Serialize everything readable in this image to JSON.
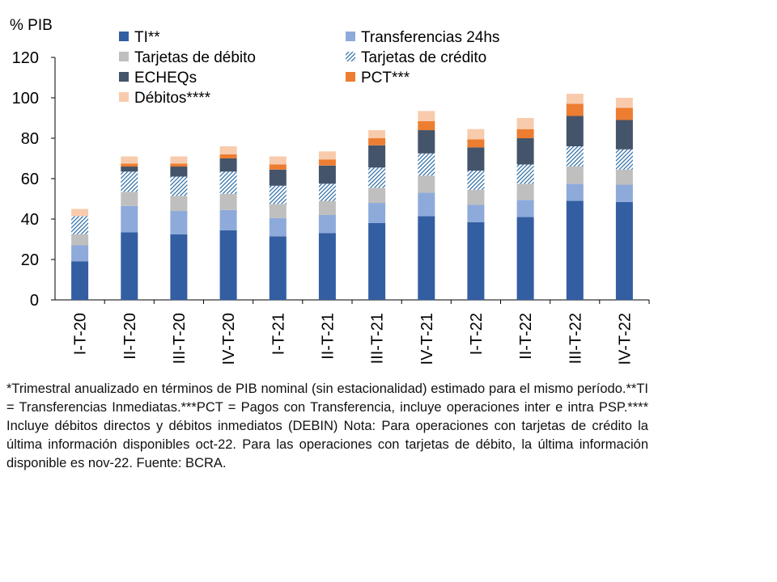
{
  "chart_data": {
    "type": "bar",
    "stacked": true,
    "ylabel": "% PIB",
    "ylim": [
      0,
      120
    ],
    "yticks": [
      0,
      20,
      40,
      60,
      80,
      100,
      120
    ],
    "grid": false,
    "legend_position": "top",
    "categories": [
      "I-T-20",
      "II-T-20",
      "III-T-20",
      "IV-T-20",
      "I-T-21",
      "II-T-21",
      "III-T-21",
      "IV-T-21",
      "I-T-22",
      "II-T-22",
      "III-T-22",
      "IV-T-22"
    ],
    "series": [
      {
        "name": "TI**",
        "color": "#345ea2",
        "pattern": "solid",
        "values": [
          19,
          33.5,
          32.5,
          34.5,
          31.5,
          33,
          38,
          41.5,
          38.5,
          41,
          49,
          48.5
        ]
      },
      {
        "name": "Transferencias 24hs",
        "color": "#8eaadb",
        "pattern": "solid",
        "values": [
          8,
          13,
          11.5,
          10,
          9,
          9,
          10,
          11.5,
          8.5,
          8.5,
          8.5,
          8.5
        ]
      },
      {
        "name": "Tarjetas de débito",
        "color": "#bfbfbf",
        "pattern": "solid",
        "values": [
          5.5,
          7,
          7.5,
          8,
          7,
          7,
          7.5,
          8.5,
          7.5,
          8,
          8.5,
          7.5
        ]
      },
      {
        "name": "Tarjetas de crédito",
        "color": "#2e6da4",
        "pattern": "hatch",
        "values": [
          9,
          10,
          9.5,
          11,
          9,
          8.5,
          10,
          11,
          9.5,
          9.5,
          10,
          10
        ]
      },
      {
        "name": "ECHEQs",
        "color": "#44546a",
        "pattern": "solid",
        "values": [
          0,
          2.5,
          5,
          6.5,
          8,
          9,
          11,
          11.5,
          11.5,
          13,
          15,
          14.5
        ]
      },
      {
        "name": "PCT***",
        "color": "#ed7d31",
        "pattern": "solid",
        "values": [
          0,
          1.5,
          1.5,
          2,
          2.5,
          3,
          3.5,
          4.5,
          4,
          4.5,
          6,
          6
        ]
      },
      {
        "name": "Débitos****",
        "color": "#f8cbad",
        "pattern": "solid",
        "values": [
          3.5,
          3.5,
          3.5,
          4,
          4,
          4,
          4,
          5,
          5,
          5.5,
          5,
          5
        ]
      }
    ]
  },
  "footnote": "*Trimestral anualizado en términos de PIB nominal (sin estacionalidad) estimado para el mismo período.**TI = Transferencias Inmediatas.***PCT = Pagos con Transferencia, incluye operaciones inter e intra PSP.**** Incluye débitos directos y débitos inmediatos (DEBIN) Nota: Para operaciones con tarjetas de crédito la última información disponibles oct-22. Para las operaciones con tarjetas de débito, la última información disponible es nov-22. Fuente: BCRA."
}
